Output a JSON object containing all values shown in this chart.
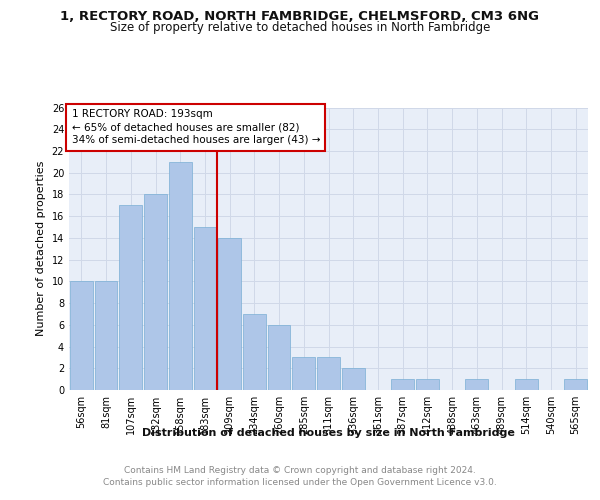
{
  "title1": "1, RECTORY ROAD, NORTH FAMBRIDGE, CHELMSFORD, CM3 6NG",
  "title2": "Size of property relative to detached houses in North Fambridge",
  "xlabel": "Distribution of detached houses by size in North Fambridge",
  "ylabel": "Number of detached properties",
  "categories": [
    "56sqm",
    "81sqm",
    "107sqm",
    "132sqm",
    "158sqm",
    "183sqm",
    "209sqm",
    "234sqm",
    "260sqm",
    "285sqm",
    "311sqm",
    "336sqm",
    "361sqm",
    "387sqm",
    "412sqm",
    "438sqm",
    "463sqm",
    "489sqm",
    "514sqm",
    "540sqm",
    "565sqm"
  ],
  "values": [
    10,
    10,
    17,
    18,
    21,
    15,
    14,
    7,
    6,
    3,
    3,
    2,
    0,
    1,
    1,
    0,
    1,
    0,
    1,
    0,
    1
  ],
  "bar_color": "#aec6e8",
  "bar_edge_color": "#7aafd4",
  "vline_color": "#cc0000",
  "vline_pos": 5.5,
  "annotation_text": "1 RECTORY ROAD: 193sqm\n← 65% of detached houses are smaller (82)\n34% of semi-detached houses are larger (43) →",
  "annotation_box_color": "#ffffff",
  "annotation_box_edge": "#cc0000",
  "ylim": [
    0,
    26
  ],
  "yticks": [
    0,
    2,
    4,
    6,
    8,
    10,
    12,
    14,
    16,
    18,
    20,
    22,
    24,
    26
  ],
  "grid_color": "#d0d8e8",
  "background_color": "#e8eef8",
  "footer1": "Contains HM Land Registry data © Crown copyright and database right 2024.",
  "footer2": "Contains public sector information licensed under the Open Government Licence v3.0.",
  "title_fontsize": 9.5,
  "subtitle_fontsize": 8.5,
  "ylabel_fontsize": 8,
  "xlabel_fontsize": 8,
  "tick_fontsize": 7,
  "annotation_fontsize": 7.5,
  "footer_fontsize": 6.5
}
